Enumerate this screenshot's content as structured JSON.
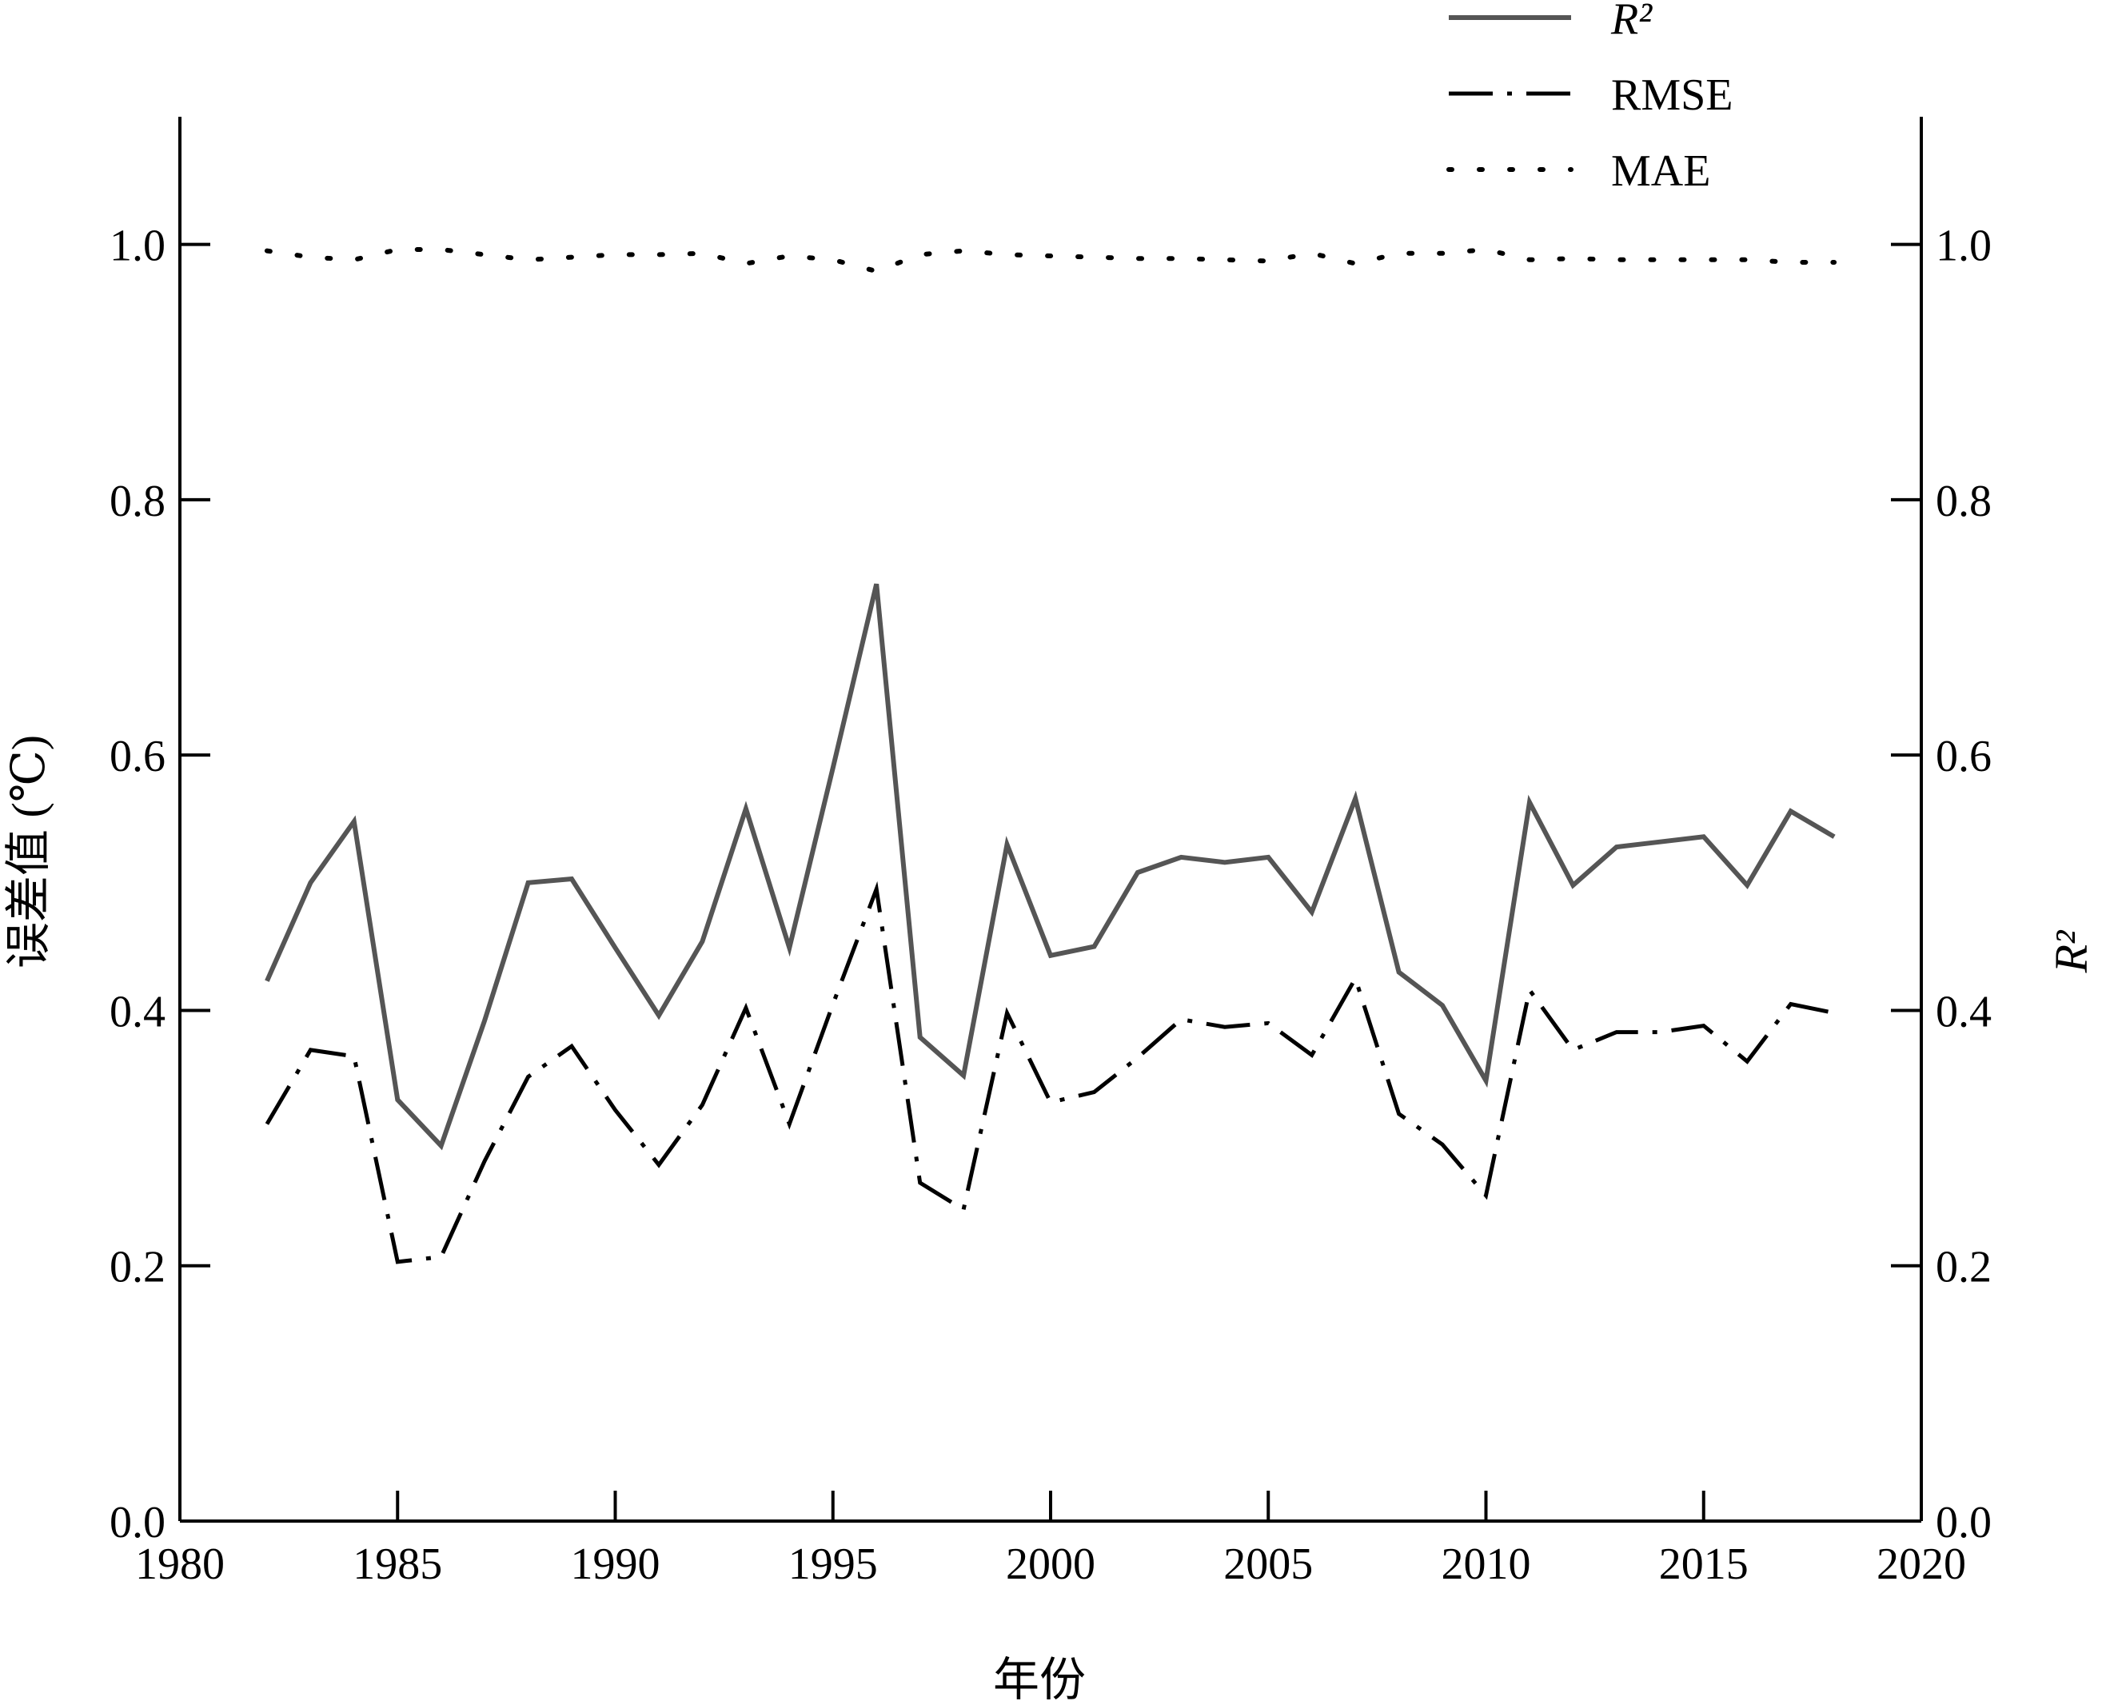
{
  "chart_data": {
    "type": "line",
    "title": "",
    "xlabel": "年份",
    "ylabel_left": "误差值 (℃)",
    "ylabel_right": "R²",
    "xlim": [
      1980,
      2020
    ],
    "ylim_left": [
      0.0,
      1.1
    ],
    "ylim_right": [
      0.0,
      1.1
    ],
    "x_ticks": [
      1980,
      1985,
      1990,
      1995,
      2000,
      2005,
      2010,
      2015,
      2020
    ],
    "y_ticks": [
      "0.0",
      "0.2",
      "0.4",
      "0.6",
      "0.8",
      "1.0"
    ],
    "y_tick_values": [
      0.0,
      0.2,
      0.4,
      0.6,
      0.8,
      1.0
    ],
    "legend_position": "top-right",
    "grid": false,
    "x": [
      1982,
      1983,
      1984,
      1985,
      1986,
      1987,
      1988,
      1989,
      1990,
      1991,
      1992,
      1993,
      1994,
      1995,
      1996,
      1997,
      1998,
      1999,
      2000,
      2001,
      2002,
      2003,
      2004,
      2005,
      2006,
      2007,
      2008,
      2009,
      2010,
      2011,
      2012,
      2013,
      2014,
      2015,
      2016,
      2017,
      2018
    ],
    "series": [
      {
        "name": "R²",
        "style": "solid",
        "color": "#555555",
        "values": [
          0.423,
          0.5,
          0.548,
          0.33,
          0.294,
          0.392,
          0.5,
          0.503,
          0.449,
          0.396,
          0.454,
          0.558,
          0.449,
          0.59,
          0.734,
          0.379,
          0.349,
          0.53,
          0.443,
          0.45,
          0.508,
          0.52,
          0.516,
          0.52,
          0.477,
          0.566,
          0.43,
          0.404,
          0.345,
          0.563,
          0.498,
          0.528,
          0.532,
          0.536,
          0.498,
          0.556,
          0.536
        ]
      },
      {
        "name": "RMSE",
        "style": "dash-dot",
        "color": "#000000",
        "values": [
          0.311,
          0.369,
          0.364,
          0.203,
          0.207,
          0.282,
          0.348,
          0.372,
          0.322,
          0.279,
          0.326,
          0.402,
          0.311,
          0.405,
          0.495,
          0.265,
          0.244,
          0.398,
          0.328,
          0.336,
          0.363,
          0.393,
          0.387,
          0.39,
          0.365,
          0.425,
          0.319,
          0.295,
          0.255,
          0.416,
          0.369,
          0.383,
          0.383,
          0.388,
          0.36,
          0.405,
          0.398
        ]
      },
      {
        "name": "MAE",
        "style": "dotted",
        "color": "#000000",
        "values": [
          0.995,
          0.99,
          0.988,
          0.996,
          0.996,
          0.992,
          0.988,
          0.99,
          0.992,
          0.992,
          0.993,
          0.985,
          0.991,
          0.988,
          0.979,
          0.992,
          0.995,
          0.992,
          0.991,
          0.99,
          0.989,
          0.989,
          0.988,
          0.987,
          0.993,
          0.985,
          0.993,
          0.993,
          0.996,
          0.988,
          0.989,
          0.988,
          0.988,
          0.988,
          0.988,
          0.986,
          0.986
        ]
      }
    ]
  }
}
